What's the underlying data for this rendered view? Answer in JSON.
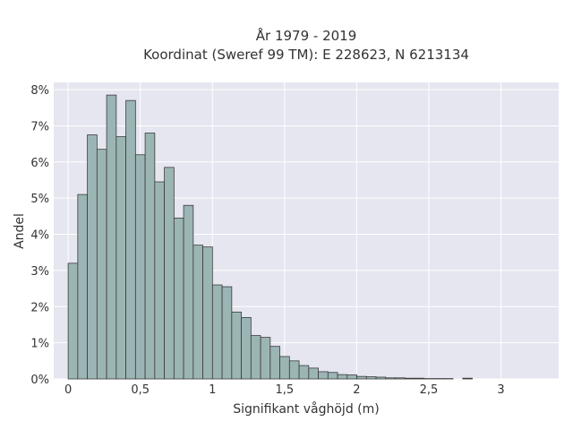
{
  "chart_data": {
    "type": "bar",
    "title": "År 1979 - 2019",
    "subtitle": "Koordinat (Sweref 99 TM): E 228623, N 6213134",
    "xlabel": "Signifikant våghöjd (m)",
    "ylabel": "Andel",
    "xlim": [
      -0.1,
      3.4
    ],
    "ylim": [
      0,
      8.2
    ],
    "x_ticks": [
      0,
      0.5,
      1,
      1.5,
      2,
      2.5,
      3
    ],
    "x_tick_labels": [
      "0",
      "0,5",
      "1",
      "1,5",
      "2",
      "2,5",
      "3"
    ],
    "y_ticks": [
      0,
      1,
      2,
      3,
      4,
      5,
      6,
      7,
      8
    ],
    "y_tick_labels": [
      "0%",
      "1%",
      "2%",
      "3%",
      "4%",
      "5%",
      "6%",
      "7%",
      "8%"
    ],
    "bin_width": 0.0667,
    "bin_start": 0,
    "values": [
      3.2,
      5.1,
      6.75,
      6.35,
      7.85,
      6.7,
      7.7,
      6.2,
      6.8,
      5.45,
      5.85,
      4.45,
      4.8,
      3.7,
      3.65,
      2.6,
      2.55,
      1.85,
      1.7,
      1.2,
      1.15,
      0.9,
      0.62,
      0.5,
      0.37,
      0.3,
      0.2,
      0.18,
      0.12,
      0.11,
      0.07,
      0.06,
      0.05,
      0.03,
      0.03,
      0.02,
      0.02,
      0.01,
      0.01,
      0.01,
      0.0,
      0.02
    ],
    "grid": true,
    "colors": {
      "bar_fill": "#9bb5b4",
      "bar_stroke": "#3b3b3b",
      "plot_bg": "#e5e6ef",
      "grid": "#ffffff"
    }
  }
}
